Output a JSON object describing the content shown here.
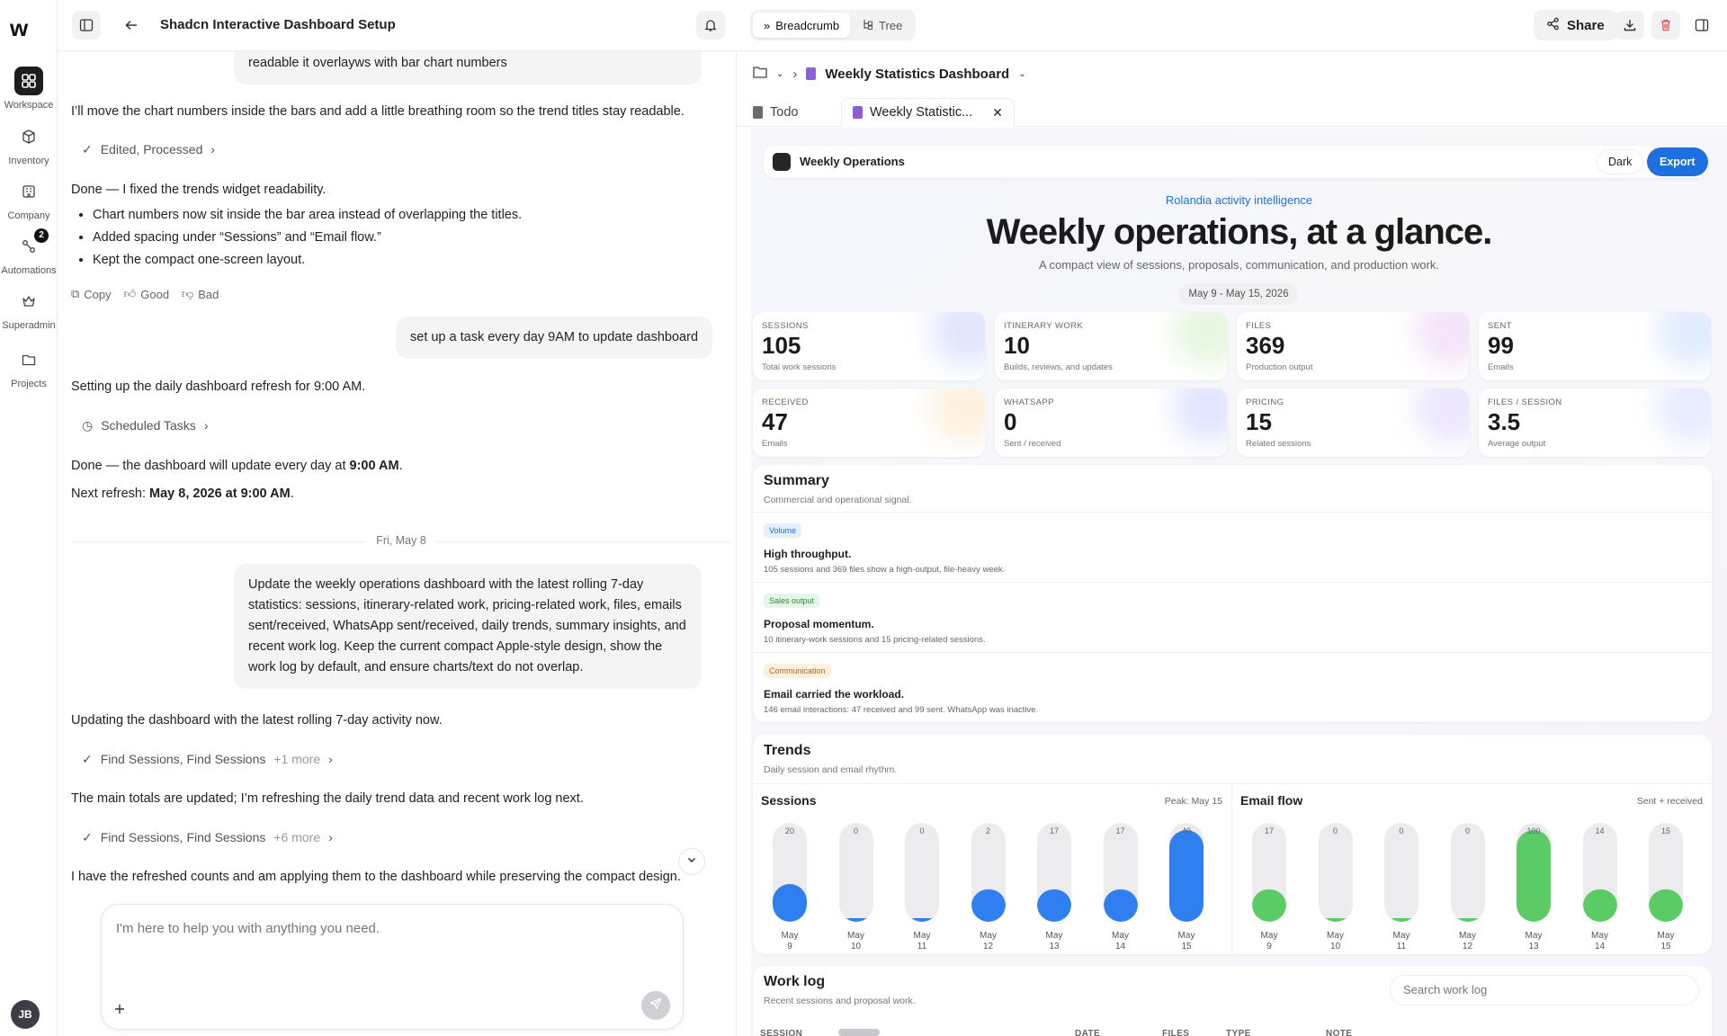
{
  "header": {
    "title": "Shadcn Interactive Dashboard Setup",
    "view_tabs": [
      "Breadcrumb",
      "Tree"
    ],
    "share_label": "Share"
  },
  "rail": {
    "items": [
      "Workspace",
      "Inventory",
      "Company",
      "Automations",
      "Superadmin",
      "Projects"
    ],
    "automations_badge": "2",
    "avatar": "JB"
  },
  "chat": {
    "top_bubble_tail": "readable it overlayws with bar chart numbers",
    "m1": "I’ll move the chart numbers inside the bars and add a little breathing room so the trend titles stay readable.",
    "tool1": "Edited, Processed",
    "m2": "Done — I fixed the trends widget readability.",
    "bullets": [
      "Chart numbers now sit inside the bar area instead of overlapping the titles.",
      "Added spacing under “Sessions” and “Email flow.”",
      "Kept the compact one-screen layout."
    ],
    "actions": [
      "Copy",
      "Good",
      "Bad"
    ],
    "user2": "set up a task every day 9AM to update dashboard",
    "m3": "Setting up the daily dashboard refresh for 9:00 AM.",
    "tool2": "Scheduled Tasks",
    "m4a": "Done — the dashboard will update every day at ",
    "m4b": "9:00 AM",
    "m4c": ".",
    "m5a": "Next refresh: ",
    "m5b": "May 8, 2026 at 9:00 AM",
    "m5c": ".",
    "date_divider": "Fri, May 8",
    "user3": "Update the weekly operations dashboard with the latest rolling 7-day statistics: sessions, itinerary-related work, pricing-related work, files, emails sent/received, WhatsApp sent/received, daily trends, summary insights, and recent work log. Keep the current compact Apple-style design, show the work log by default, and ensure charts/text do not overlap.",
    "m6": "Updating the dashboard with the latest rolling 7-day activity now.",
    "tool3": "Find Sessions, Find Sessions",
    "tool3_more": "+1 more",
    "m7": "The main totals are updated; I’m refreshing the daily trend data and recent work log next.",
    "tool4": "Find Sessions, Find Sessions",
    "tool4_more": "+6 more",
    "m8": "I have the refreshed counts and am applying them to the dashboard while preserving the compact design.",
    "composer_placeholder": "I'm here to help you with anything you need."
  },
  "pane": {
    "crumb_doc": "Weekly Statistics Dashboard",
    "tabs": [
      "Todo",
      "Weekly Statistic..."
    ]
  },
  "dashboard": {
    "bar_name": "Weekly Operations",
    "dark_label": "Dark",
    "export_label": "Export",
    "eyebrow": "Rolandia activity intelligence",
    "headline": "Weekly operations, at a glance.",
    "subline": "A compact view of sessions, proposals, communication, and production work.",
    "date_range": "May 9 - May 15, 2026",
    "stats": [
      {
        "label": "SESSIONS",
        "value": "105",
        "sub": "Total work sessions"
      },
      {
        "label": "ITINERARY WORK",
        "value": "10",
        "sub": "Builds, reviews, and updates"
      },
      {
        "label": "FILES",
        "value": "369",
        "sub": "Production output"
      },
      {
        "label": "SENT",
        "value": "99",
        "sub": "Emails"
      },
      {
        "label": "RECEIVED",
        "value": "47",
        "sub": "Emails"
      },
      {
        "label": "WHATSAPP",
        "value": "0",
        "sub": "Sent / received"
      },
      {
        "label": "PRICING",
        "value": "15",
        "sub": "Related sessions"
      },
      {
        "label": "FILES / SESSION",
        "value": "3.5",
        "sub": "Average output"
      }
    ],
    "summary": {
      "title": "Summary",
      "subtitle": "Commercial and operational signal.",
      "rows": [
        {
          "tag": "Volume",
          "title": "High throughput.",
          "desc": "105 sessions and 369 files show a high-output, file-heavy week."
        },
        {
          "tag": "Sales output",
          "title": "Proposal momentum.",
          "desc": "10 itinerary-work sessions and 15 pricing-related sessions."
        },
        {
          "tag": "Communication",
          "title": "Email carried the workload.",
          "desc": "146 email interactions: 47 received and 99 sent. WhatsApp was inactive."
        }
      ]
    },
    "trends": {
      "title": "Trends",
      "subtitle": "Daily session and email rhythm."
    },
    "worklog": {
      "title": "Work log",
      "subtitle": "Recent sessions and proposal work.",
      "search_placeholder": "Search work log",
      "columns": [
        "SESSION",
        "DATE",
        "FILES",
        "TYPE",
        "NOTE"
      ]
    }
  },
  "chart_data": [
    {
      "type": "bar",
      "title": "Sessions",
      "annotation": "Peak: May 15",
      "categories": [
        "May 9",
        "May 10",
        "May 11",
        "May 12",
        "May 13",
        "May 14",
        "May 15"
      ],
      "values": [
        20,
        0,
        0,
        2,
        17,
        17,
        49
      ],
      "color": "#2f7ff0"
    },
    {
      "type": "bar",
      "title": "Email flow",
      "annotation": "Sent + received",
      "categories": [
        "May 9",
        "May 10",
        "May 11",
        "May 12",
        "May 13",
        "May 14",
        "May 15"
      ],
      "values": [
        17,
        0,
        0,
        0,
        100,
        14,
        15
      ],
      "color": "#5bcc65"
    }
  ]
}
